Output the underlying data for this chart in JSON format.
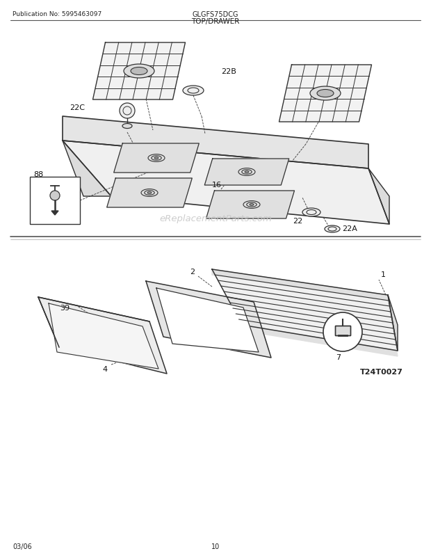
{
  "title_left": "Publication No: 5995463097",
  "title_center": "GLGFS75DCG",
  "title_sub": "TOP/DRAWER",
  "footer_left": "03/06",
  "footer_center": "10",
  "watermark": "eReplacementParts.com",
  "diagram_code": "T24T0027",
  "bg_color": "#ffffff",
  "line_color": "#333333"
}
